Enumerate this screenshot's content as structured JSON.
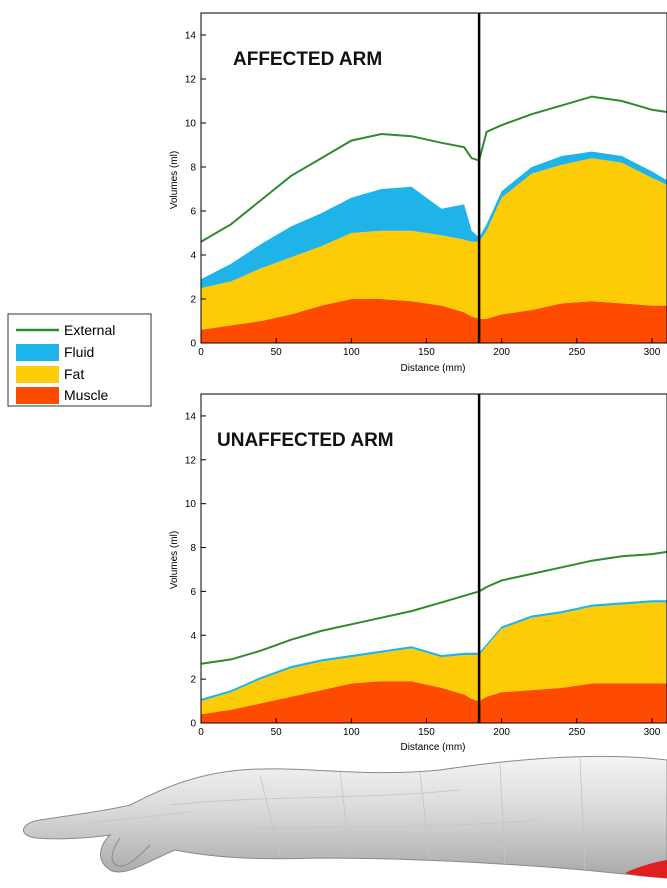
{
  "legend": [
    {
      "name": "External",
      "color": "#2e8b2e",
      "kind": "line"
    },
    {
      "name": "Fluid",
      "color": "#1eb4ea",
      "kind": "area"
    },
    {
      "name": "Fat",
      "color": "#fdcc07",
      "kind": "area"
    },
    {
      "name": "Muscle",
      "color": "#ff4b00",
      "kind": "area"
    }
  ],
  "divider_distance_mm": 185,
  "chart_data": [
    {
      "type": "area",
      "title": "AFFECTED ARM",
      "xlabel": "Distance (mm)",
      "ylabel": "Volumes (ml)",
      "xlim": [
        0,
        310
      ],
      "ylim": [
        0,
        15
      ],
      "xticks": [
        0,
        50,
        100,
        150,
        200,
        250,
        300
      ],
      "yticks": [
        0,
        2,
        4,
        6,
        8,
        10,
        12,
        14
      ],
      "x": [
        0,
        20,
        40,
        60,
        80,
        100,
        120,
        140,
        160,
        175,
        180,
        185,
        190,
        200,
        220,
        240,
        260,
        280,
        300,
        310
      ],
      "series": [
        {
          "name": "Muscle",
          "kind": "stacked-area",
          "values": [
            0.6,
            0.8,
            1.0,
            1.3,
            1.7,
            2.0,
            2.0,
            1.9,
            1.7,
            1.4,
            1.2,
            1.1,
            1.1,
            1.3,
            1.5,
            1.8,
            1.9,
            1.8,
            1.7,
            1.7
          ]
        },
        {
          "name": "Fat",
          "kind": "stacked-area",
          "values": [
            1.9,
            2.0,
            2.4,
            2.6,
            2.7,
            3.0,
            3.1,
            3.2,
            3.2,
            3.3,
            3.4,
            3.5,
            4.0,
            5.3,
            6.2,
            6.3,
            6.5,
            6.4,
            5.8,
            5.5
          ]
        },
        {
          "name": "Fluid",
          "kind": "stacked-area",
          "values": [
            0.4,
            0.8,
            1.1,
            1.4,
            1.5,
            1.6,
            1.9,
            2.0,
            1.2,
            1.6,
            0.5,
            0.2,
            0.3,
            0.3,
            0.3,
            0.4,
            0.3,
            0.3,
            0.3,
            0.2
          ]
        },
        {
          "name": "External",
          "kind": "line",
          "values": [
            4.6,
            5.4,
            6.5,
            7.6,
            8.4,
            9.2,
            9.5,
            9.4,
            9.1,
            8.9,
            8.4,
            8.3,
            9.6,
            9.9,
            10.4,
            10.8,
            11.2,
            11.0,
            10.6,
            10.5
          ]
        }
      ]
    },
    {
      "type": "area",
      "title": "UNAFFECTED ARM",
      "xlabel": "Distance (mm)",
      "ylabel": "Volumes (ml)",
      "xlim": [
        0,
        310
      ],
      "ylim": [
        0,
        15
      ],
      "xticks": [
        0,
        50,
        100,
        150,
        200,
        250,
        300
      ],
      "yticks": [
        0,
        2,
        4,
        6,
        8,
        10,
        12,
        14
      ],
      "x": [
        0,
        20,
        40,
        60,
        80,
        100,
        120,
        140,
        160,
        175,
        180,
        185,
        190,
        200,
        220,
        240,
        260,
        280,
        300,
        310
      ],
      "series": [
        {
          "name": "Muscle",
          "kind": "stacked-area",
          "values": [
            0.4,
            0.6,
            0.9,
            1.2,
            1.5,
            1.8,
            1.9,
            1.9,
            1.6,
            1.3,
            1.1,
            1.0,
            1.2,
            1.4,
            1.5,
            1.6,
            1.8,
            1.8,
            1.8,
            1.8
          ]
        },
        {
          "name": "Fat",
          "kind": "stacked-area",
          "values": [
            0.6,
            0.8,
            1.1,
            1.3,
            1.3,
            1.2,
            1.3,
            1.5,
            1.4,
            1.8,
            2.0,
            2.1,
            2.3,
            2.9,
            3.3,
            3.4,
            3.5,
            3.6,
            3.7,
            3.7
          ]
        },
        {
          "name": "Fluid",
          "kind": "stacked-area",
          "values": [
            0.1,
            0.1,
            0.1,
            0.1,
            0.1,
            0.1,
            0.1,
            0.1,
            0.1,
            0.1,
            0.1,
            0.1,
            0.1,
            0.1,
            0.1,
            0.1,
            0.1,
            0.1,
            0.1,
            0.1
          ]
        },
        {
          "name": "External",
          "kind": "line",
          "values": [
            2.7,
            2.9,
            3.3,
            3.8,
            4.2,
            4.5,
            4.8,
            5.1,
            5.5,
            5.8,
            5.9,
            6.0,
            6.2,
            6.5,
            6.8,
            7.1,
            7.4,
            7.6,
            7.7,
            7.8
          ]
        }
      ]
    }
  ]
}
